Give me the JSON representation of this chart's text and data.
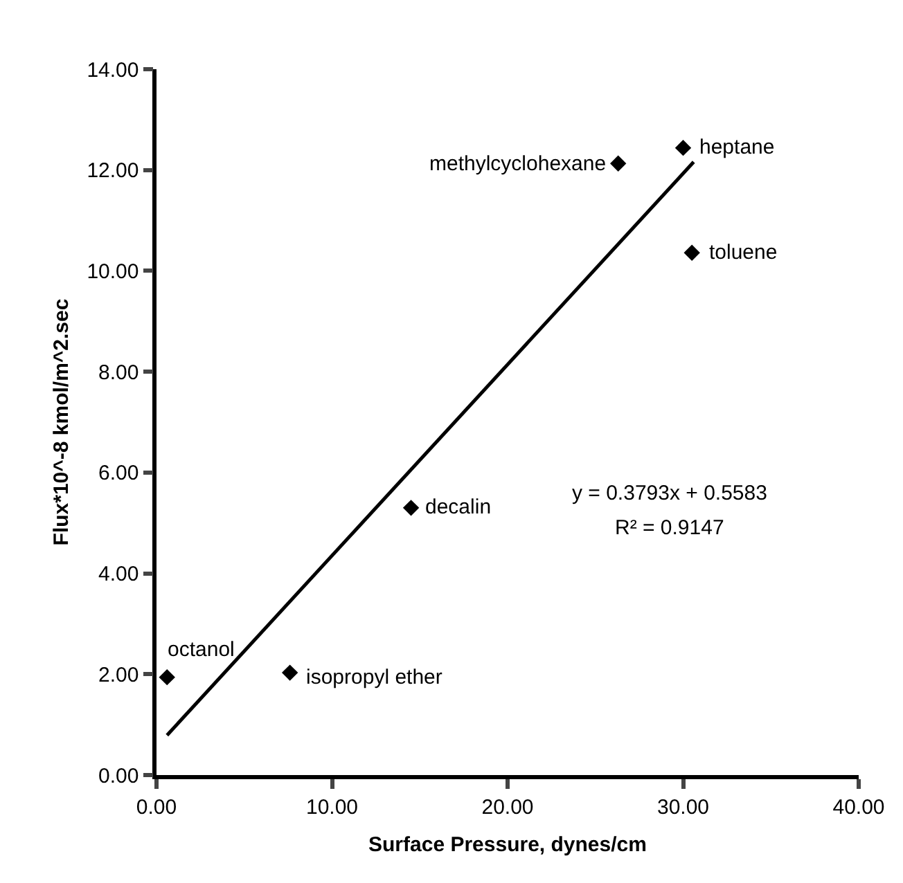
{
  "chart_data": {
    "type": "scatter",
    "xlabel": "Surface Pressure, dynes/cm",
    "ylabel": "Flux*10^-8 kmol/m^2.sec",
    "x": [
      0.6,
      7.6,
      14.5,
      26.3,
      30.0,
      30.5
    ],
    "series": [
      {
        "color": "#000000",
        "values": [
          1.94,
          2.03,
          5.3,
          12.13,
          12.44,
          10.36
        ]
      },
      {
        "type": "line",
        "marker": "none",
        "color": "#000000",
        "x": [
          0.6,
          30.6
        ],
        "values": [
          0.79,
          12.16
        ]
      }
    ],
    "marker": "diamond",
    "xlim": [
      0,
      40
    ],
    "xticks": [
      {
        "value": 0,
        "label": "0.00"
      },
      {
        "value": 10,
        "label": "10.00"
      },
      {
        "value": 20,
        "label": "20.00"
      },
      {
        "value": 30,
        "label": "30.00"
      },
      {
        "value": 40,
        "label": "40.00"
      }
    ],
    "ylim": [
      0,
      14
    ],
    "yticks": [
      {
        "value": 0,
        "label": "0.00"
      },
      {
        "value": 2,
        "label": "2.00"
      },
      {
        "value": 4,
        "label": "4.00"
      },
      {
        "value": 6,
        "label": "6.00"
      },
      {
        "value": 8,
        "label": "8.00"
      },
      {
        "value": 10,
        "label": "10.00"
      },
      {
        "value": 12,
        "label": "12.00"
      },
      {
        "value": 14,
        "label": "14.00"
      }
    ],
    "annotations": [
      {
        "text": "octanol",
        "x": 0.6,
        "y": 1.94
      },
      {
        "text": "isopropyl ether",
        "x": 7.6,
        "y": 2.03
      },
      {
        "text": "decalin",
        "x": 14.5,
        "y": 5.3
      },
      {
        "text": "methylcyclohexane",
        "x": 26.3,
        "y": 12.13
      },
      {
        "text": "heptane",
        "x": 30.0,
        "y": 12.44
      },
      {
        "text": "toluene",
        "x": 30.5,
        "y": 10.36
      },
      "y = 0.3793x + 0.5583",
      "R² = 0.9147"
    ]
  }
}
